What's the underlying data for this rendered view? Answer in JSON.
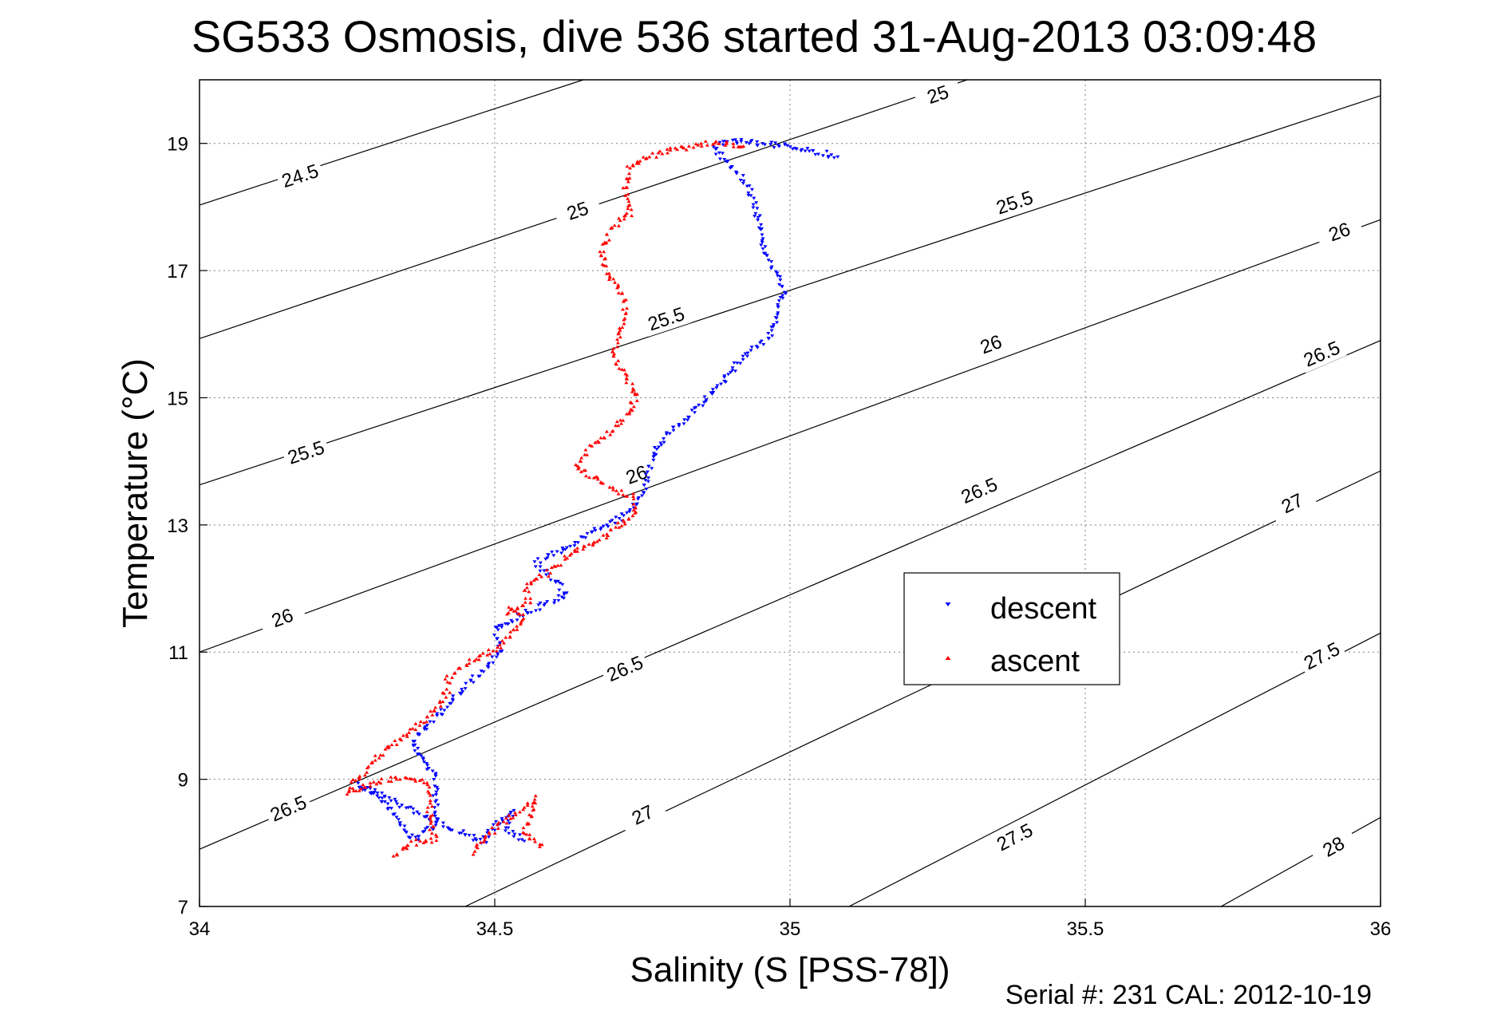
{
  "chart_data": {
    "type": "scatter",
    "title": "SG533 Osmosis, dive 536 started 31-Aug-2013 03:09:48",
    "xlabel": "Salinity (S [PSS-78])",
    "ylabel": "Temperature (°C)",
    "footer": "Serial #: 231  CAL: 2012-10-19",
    "xlim": [
      34,
      36
    ],
    "ylim": [
      7,
      20
    ],
    "xticks": [
      "34",
      "34.5",
      "35",
      "35.5",
      "36"
    ],
    "yticks": [
      "7",
      "9",
      "11",
      "13",
      "15",
      "17",
      "19"
    ],
    "grid": true,
    "legend": {
      "position": "center-right",
      "entries": [
        "descent",
        "ascent"
      ]
    },
    "colors": {
      "descent": "#0000ff",
      "ascent": "#ff0000",
      "contour": "#000000",
      "grid": "#808080"
    },
    "contours": {
      "levels": [
        "24.5",
        "25",
        "25.5",
        "26",
        "26.5",
        "27",
        "27.5",
        "28"
      ],
      "lines": [
        {
          "level": "24.5",
          "points": [
            [
              34.0,
              18.03
            ],
            [
              34.65,
              20.0
            ]
          ],
          "labels": [
            [
              34.17,
              18.5
            ]
          ]
        },
        {
          "level": "25",
          "points": [
            [
              34.0,
              15.93
            ],
            [
              35.3,
              20.0
            ]
          ],
          "labels": [
            [
              34.64,
              17.95
            ],
            [
              35.25,
              19.78
            ]
          ]
        },
        {
          "level": "25.5",
          "points": [
            [
              34.0,
              13.63
            ],
            [
              36.0,
              19.75
            ]
          ],
          "labels": [
            [
              34.18,
              14.15
            ],
            [
              34.79,
              16.25
            ],
            [
              35.38,
              18.08
            ]
          ]
        },
        {
          "level": "26",
          "points": [
            [
              34.0,
              11.0
            ],
            [
              36.0,
              17.8
            ]
          ],
          "labels": [
            [
              34.14,
              11.55
            ],
            [
              34.74,
              13.8
            ],
            [
              35.34,
              15.85
            ],
            [
              35.93,
              17.62
            ]
          ]
        },
        {
          "level": "26.5",
          "points": [
            [
              34.0,
              7.9
            ],
            [
              36.0,
              15.9
            ]
          ],
          "labels": [
            [
              34.15,
              8.55
            ],
            [
              34.72,
              10.75
            ],
            [
              35.32,
              13.55
            ],
            [
              35.9,
              15.7
            ]
          ]
        },
        {
          "level": "27",
          "points": [
            [
              34.45,
              7.0
            ],
            [
              36.0,
              13.85
            ]
          ],
          "labels": [
            [
              34.75,
              8.45
            ],
            [
              35.85,
              13.35
            ]
          ]
        },
        {
          "level": "27.5",
          "points": [
            [
              35.1,
              7.0
            ],
            [
              36.0,
              11.3
            ]
          ],
          "labels": [
            [
              35.38,
              8.1
            ],
            [
              35.9,
              10.95
            ]
          ]
        },
        {
          "level": "28",
          "points": [
            [
              35.73,
              7.0
            ],
            [
              36.0,
              8.4
            ]
          ],
          "labels": [
            [
              35.92,
              7.95
            ]
          ]
        }
      ]
    },
    "descent_path": [
      [
        35.08,
        18.8
      ],
      [
        35.0,
        18.95
      ],
      [
        34.95,
        19.0
      ],
      [
        34.9,
        19.05
      ],
      [
        34.87,
        18.95
      ],
      [
        34.9,
        18.65
      ],
      [
        34.93,
        18.3
      ],
      [
        34.95,
        17.7
      ],
      [
        34.95,
        17.45
      ],
      [
        34.97,
        17.1
      ],
      [
        34.99,
        16.7
      ],
      [
        34.98,
        16.35
      ],
      [
        34.97,
        16.0
      ],
      [
        34.92,
        15.65
      ],
      [
        34.89,
        15.3
      ],
      [
        34.85,
        14.9
      ],
      [
        34.8,
        14.5
      ],
      [
        34.77,
        14.15
      ],
      [
        34.76,
        13.85
      ],
      [
        34.75,
        13.5
      ],
      [
        34.73,
        13.2
      ],
      [
        34.68,
        12.95
      ],
      [
        34.62,
        12.65
      ],
      [
        34.57,
        12.4
      ],
      [
        34.6,
        12.15
      ],
      [
        34.62,
        11.9
      ],
      [
        34.56,
        11.65
      ],
      [
        34.5,
        11.35
      ],
      [
        34.51,
        11.05
      ],
      [
        34.49,
        10.8
      ],
      [
        34.46,
        10.55
      ],
      [
        34.43,
        10.3
      ],
      [
        34.41,
        10.05
      ],
      [
        34.38,
        9.8
      ],
      [
        34.36,
        9.55
      ],
      [
        34.38,
        9.3
      ],
      [
        34.4,
        9.05
      ],
      [
        34.4,
        8.8
      ],
      [
        34.4,
        8.55
      ],
      [
        34.4,
        8.3
      ],
      [
        34.36,
        8.05
      ],
      [
        34.33,
        8.45
      ],
      [
        34.3,
        8.75
      ],
      [
        34.27,
        8.9
      ],
      [
        34.48,
        8.0
      ],
      [
        34.5,
        8.25
      ],
      [
        34.53,
        8.5
      ],
      [
        34.52,
        8.2
      ],
      [
        34.55,
        8.05
      ]
    ],
    "ascent_path": [
      [
        34.33,
        7.8
      ],
      [
        34.36,
        8.0
      ],
      [
        34.4,
        8.05
      ],
      [
        34.39,
        8.3
      ],
      [
        34.39,
        8.6
      ],
      [
        34.39,
        8.9
      ],
      [
        34.36,
        9.0
      ],
      [
        34.32,
        9.0
      ],
      [
        34.25,
        8.8
      ],
      [
        34.3,
        9.35
      ],
      [
        34.36,
        9.75
      ],
      [
        34.4,
        10.1
      ],
      [
        34.42,
        10.4
      ],
      [
        34.42,
        10.6
      ],
      [
        34.46,
        10.85
      ],
      [
        34.5,
        11.05
      ],
      [
        34.53,
        11.3
      ],
      [
        34.55,
        11.55
      ],
      [
        34.52,
        11.65
      ],
      [
        34.56,
        11.8
      ],
      [
        34.55,
        12.0
      ],
      [
        34.59,
        12.25
      ],
      [
        34.64,
        12.6
      ],
      [
        34.7,
        12.9
      ],
      [
        34.74,
        13.2
      ],
      [
        34.73,
        13.45
      ],
      [
        34.7,
        13.55
      ],
      [
        34.67,
        13.75
      ],
      [
        34.64,
        13.9
      ],
      [
        34.66,
        14.2
      ],
      [
        34.7,
        14.5
      ],
      [
        34.73,
        14.8
      ],
      [
        34.74,
        15.05
      ],
      [
        34.72,
        15.35
      ],
      [
        34.7,
        15.65
      ],
      [
        34.71,
        15.95
      ],
      [
        34.72,
        16.3
      ],
      [
        34.72,
        16.6
      ],
      [
        34.69,
        16.95
      ],
      [
        34.68,
        17.3
      ],
      [
        34.7,
        17.7
      ],
      [
        34.73,
        17.9
      ],
      [
        34.72,
        18.3
      ],
      [
        34.73,
        18.65
      ],
      [
        34.78,
        18.85
      ],
      [
        34.84,
        18.95
      ],
      [
        34.87,
        19.02
      ],
      [
        34.93,
        18.95
      ],
      [
        34.46,
        7.85
      ],
      [
        34.5,
        8.2
      ],
      [
        34.55,
        8.55
      ],
      [
        34.57,
        8.7
      ],
      [
        34.55,
        8.15
      ],
      [
        34.58,
        7.95
      ]
    ]
  }
}
